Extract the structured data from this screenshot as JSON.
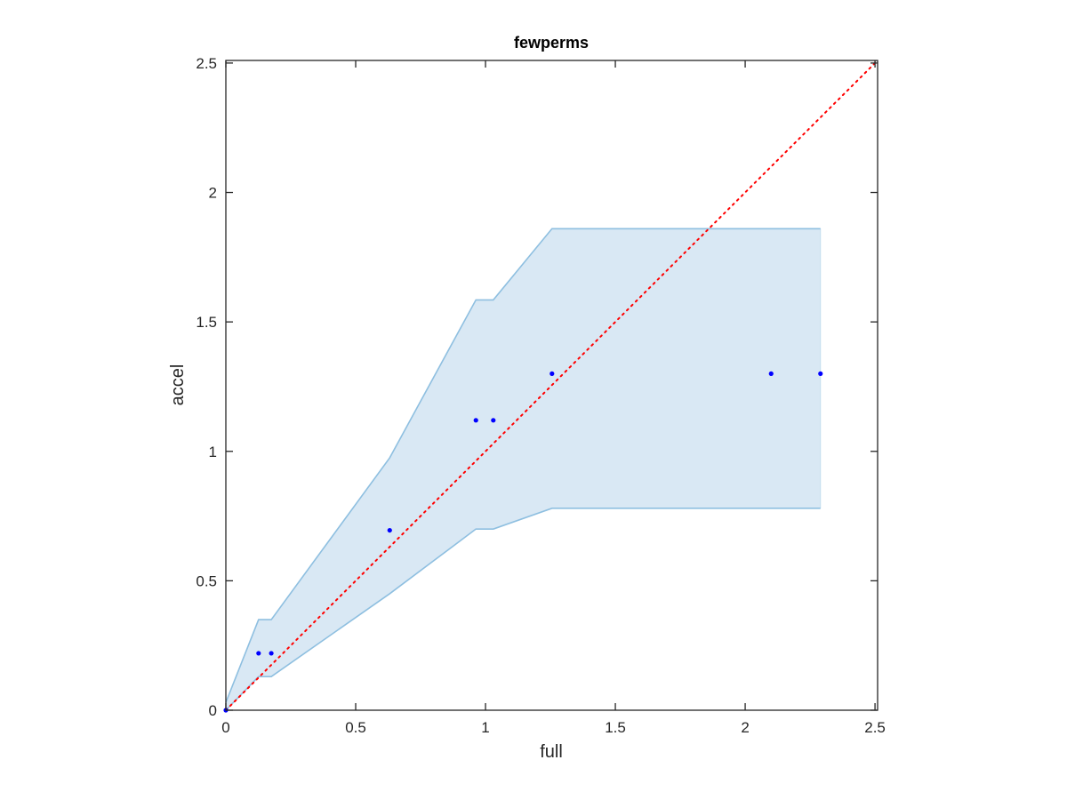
{
  "chart_data": {
    "type": "scatter",
    "title": "fewperms",
    "xlabel": "full",
    "ylabel": "accel",
    "xlim": [
      0,
      2.51
    ],
    "ylim": [
      0,
      2.51
    ],
    "xticks": [
      0,
      0.5,
      1,
      1.5,
      2,
      2.5
    ],
    "yticks": [
      0,
      0.5,
      1,
      1.5,
      2,
      2.5
    ],
    "xtick_labels": [
      "0",
      "0.5",
      "1",
      "1.5",
      "2",
      "2.5"
    ],
    "ytick_labels": [
      "0",
      "0.5",
      "1",
      "1.5",
      "2",
      "2.5"
    ],
    "grid": false,
    "points": {
      "color": "#0000ff",
      "x": [
        0,
        0.126,
        0.175,
        0.631,
        0.963,
        1.03,
        1.256,
        2.1,
        2.29
      ],
      "y": [
        0,
        0.22,
        0.22,
        0.695,
        1.12,
        1.12,
        1.3,
        1.3,
        1.3
      ]
    },
    "band": {
      "fill_color": "#d9e8f4",
      "edge_color": "#8ebfe0",
      "upper": {
        "x": [
          0,
          0.126,
          0.175,
          0.631,
          0.963,
          1.03,
          1.256,
          2.1,
          2.29
        ],
        "y": [
          0.03,
          0.35,
          0.35,
          0.975,
          1.585,
          1.585,
          1.86,
          1.86,
          1.86
        ]
      },
      "lower": {
        "x": [
          0,
          0.126,
          0.175,
          0.631,
          0.963,
          1.03,
          1.256,
          2.1,
          2.29
        ],
        "y": [
          0,
          0.13,
          0.13,
          0.45,
          0.7,
          0.7,
          0.78,
          0.78,
          0.78
        ]
      }
    },
    "reference_line": {
      "style": "dotted",
      "color": "#ff0000",
      "x": [
        0,
        2.51
      ],
      "y": [
        0,
        2.51
      ]
    }
  }
}
